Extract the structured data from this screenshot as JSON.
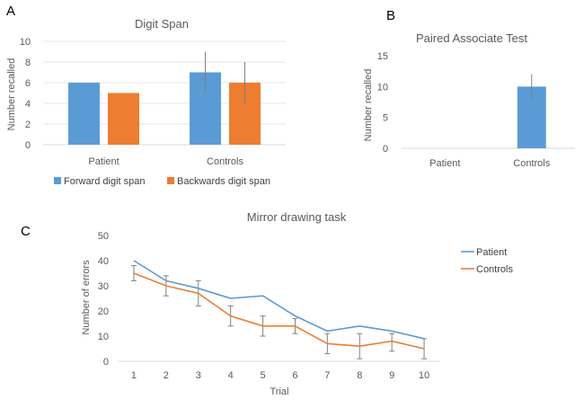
{
  "panels": {
    "a": "A",
    "b": "B",
    "c": "C"
  },
  "chart_data": [
    {
      "type": "bar",
      "title": "Digit Span",
      "categories": [
        "Patient",
        "Controls"
      ],
      "series": [
        {
          "name": "Forward digit span",
          "color": "#5b9bd5",
          "values": [
            6,
            7
          ],
          "error_high": [
            null,
            9
          ],
          "error_low": [
            null,
            5
          ]
        },
        {
          "name": "Backwards digit span",
          "color": "#ed7d31",
          "values": [
            5,
            6
          ],
          "error_high": [
            null,
            8
          ],
          "error_low": [
            null,
            4
          ]
        }
      ],
      "ylabel": "Number recalled",
      "xlabel": "",
      "ylim": [
        0,
        10
      ],
      "yticks": [
        0,
        2,
        4,
        6,
        8,
        10
      ],
      "grid": true,
      "legend": "bottom"
    },
    {
      "type": "bar",
      "title": "Paired Associate Test",
      "categories": [
        "Patient",
        "Controls"
      ],
      "series": [
        {
          "name": "",
          "color": "#5b9bd5",
          "values": [
            0,
            10
          ],
          "error_high": [
            null,
            12
          ],
          "error_low": [
            null,
            8
          ]
        }
      ],
      "ylabel": "Number recalled",
      "xlabel": "",
      "ylim": [
        0,
        15
      ],
      "yticks": [
        0,
        5,
        10,
        15
      ],
      "grid": false,
      "legend": "none"
    },
    {
      "type": "line",
      "title": "Mirror drawing task",
      "x": [
        1,
        2,
        3,
        4,
        5,
        6,
        7,
        8,
        9,
        10
      ],
      "series": [
        {
          "name": "Patient",
          "color": "#5b9bd5",
          "values": [
            40,
            32,
            29,
            25,
            26,
            18,
            12,
            14,
            12,
            9
          ]
        },
        {
          "name": "Controls",
          "color": "#ed7d31",
          "values": [
            35,
            30,
            27,
            18,
            14,
            14,
            7,
            6,
            8,
            5
          ],
          "error_high": [
            38,
            34,
            32,
            22,
            18,
            17,
            11,
            11,
            11,
            9
          ],
          "error_low": [
            32,
            26,
            22,
            14,
            10,
            11,
            3,
            1,
            4,
            1
          ]
        }
      ],
      "xlabel": "Trial",
      "ylabel": "Number of errors",
      "ylim": [
        0,
        50
      ],
      "yticks": [
        0,
        10,
        20,
        30,
        40,
        50
      ],
      "grid": false,
      "legend": "right"
    }
  ]
}
